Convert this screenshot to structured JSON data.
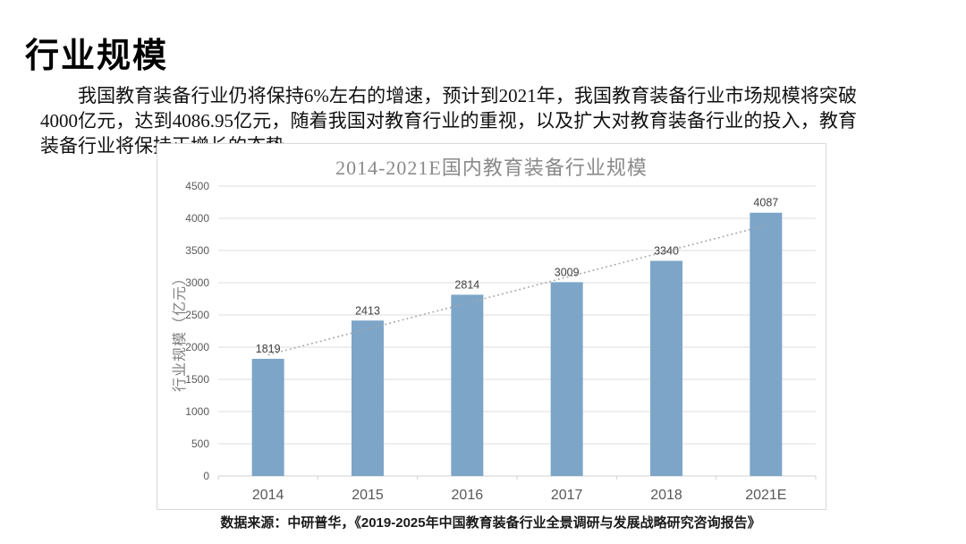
{
  "page": {
    "title": "行业规模",
    "paragraph": "我国教育装备行业仍将保持6%左右的增速，预计到2021年，我国教育装备行业市场规模将突破4000亿元，达到4086.95亿元，随着我国对教育行业的重视，以及扩大对教育装备行业的投入，教育装备行业将保持正增长的态势。",
    "source": "数据来源：中研普华，《2019-2025年中国教育装备行业全景调研与发展战略研究咨询报告》"
  },
  "chart_data": {
    "type": "bar",
    "title": "2014-2021E国内教育装备行业规模",
    "categories": [
      "2014",
      "2015",
      "2016",
      "2017",
      "2018",
      "2021E"
    ],
    "values": [
      1819,
      2413,
      2814,
      3009,
      3340,
      4087
    ],
    "xlabel": "",
    "ylabel": "行业规模（亿元）",
    "ylim": [
      0,
      4500
    ],
    "yticks": [
      0,
      500,
      1000,
      1500,
      2000,
      2500,
      3000,
      3500,
      4000,
      4500
    ],
    "grid": true,
    "legend": "none",
    "data_labels": [
      "1819",
      "2413",
      "2814",
      "3009",
      "3340",
      "4087"
    ],
    "trendline": {
      "style": "dotted",
      "start_value": 1880,
      "end_value": 3890
    },
    "colors": {
      "bar": "#7da5c8",
      "grid": "#dcdcdc",
      "axis": "#d0d0d0",
      "trend": "#a0a6ab",
      "tick_label": "#595959",
      "data_label": "#404040",
      "axis_title": "#808080",
      "panel_border": "#d9d9d9",
      "title": "#8a8a8a"
    }
  }
}
